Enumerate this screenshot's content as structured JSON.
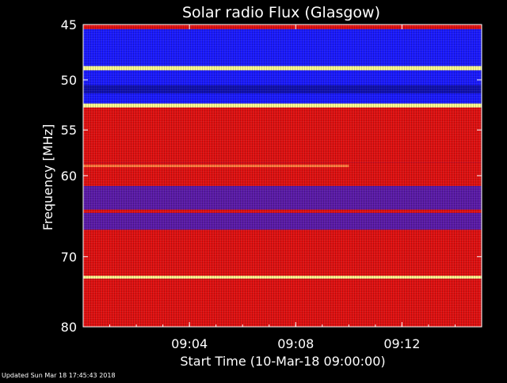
{
  "chart_data": {
    "type": "heatmap",
    "title": "Solar radio Flux (Glasgow)",
    "xlabel": "Start Time (10-Mar-18 09:00:00)",
    "ylabel": "Frequency [MHz]",
    "xlim": [
      "09:00:00",
      "09:15:00"
    ],
    "ylim": [
      80,
      45
    ],
    "y_scale": "log",
    "x_ticks": [
      "09:04",
      "09:08",
      "09:12"
    ],
    "y_ticks": [
      45,
      50,
      55,
      60,
      70,
      80
    ],
    "colormap": {
      "low": "#0000ff",
      "mid": "#ff0000",
      "high": "#ffff80"
    },
    "bands": [
      {
        "from": 45.0,
        "to": 45.4,
        "level": "red"
      },
      {
        "from": 45.4,
        "to": 48.7,
        "level": "blue"
      },
      {
        "from": 48.7,
        "to": 49.1,
        "level": "yellow"
      },
      {
        "from": 49.1,
        "to": 50.5,
        "level": "blue"
      },
      {
        "from": 50.5,
        "to": 51.3,
        "level": "dark-blue"
      },
      {
        "from": 51.3,
        "to": 52.3,
        "level": "blue"
      },
      {
        "from": 52.3,
        "to": 52.7,
        "level": "yellow"
      },
      {
        "from": 52.7,
        "to": 58.5,
        "level": "red"
      },
      {
        "from": 58.5,
        "to": 61.2,
        "level": "red"
      },
      {
        "from": 61.2,
        "to": 64.0,
        "level": "purple"
      },
      {
        "from": 64.0,
        "to": 64.4,
        "level": "red"
      },
      {
        "from": 64.4,
        "to": 66.5,
        "level": "purple"
      },
      {
        "from": 66.5,
        "to": 72.6,
        "level": "red"
      },
      {
        "from": 72.6,
        "to": 73.0,
        "level": "yellow"
      },
      {
        "from": 73.0,
        "to": 80.0,
        "level": "red"
      }
    ],
    "lines": [
      {
        "freq": 58.9,
        "from": "09:00:00",
        "to": "09:10:00",
        "level": "orange"
      }
    ]
  },
  "footer": {
    "updated": "Updated Sun Mar 18 17:45:43 2018"
  }
}
